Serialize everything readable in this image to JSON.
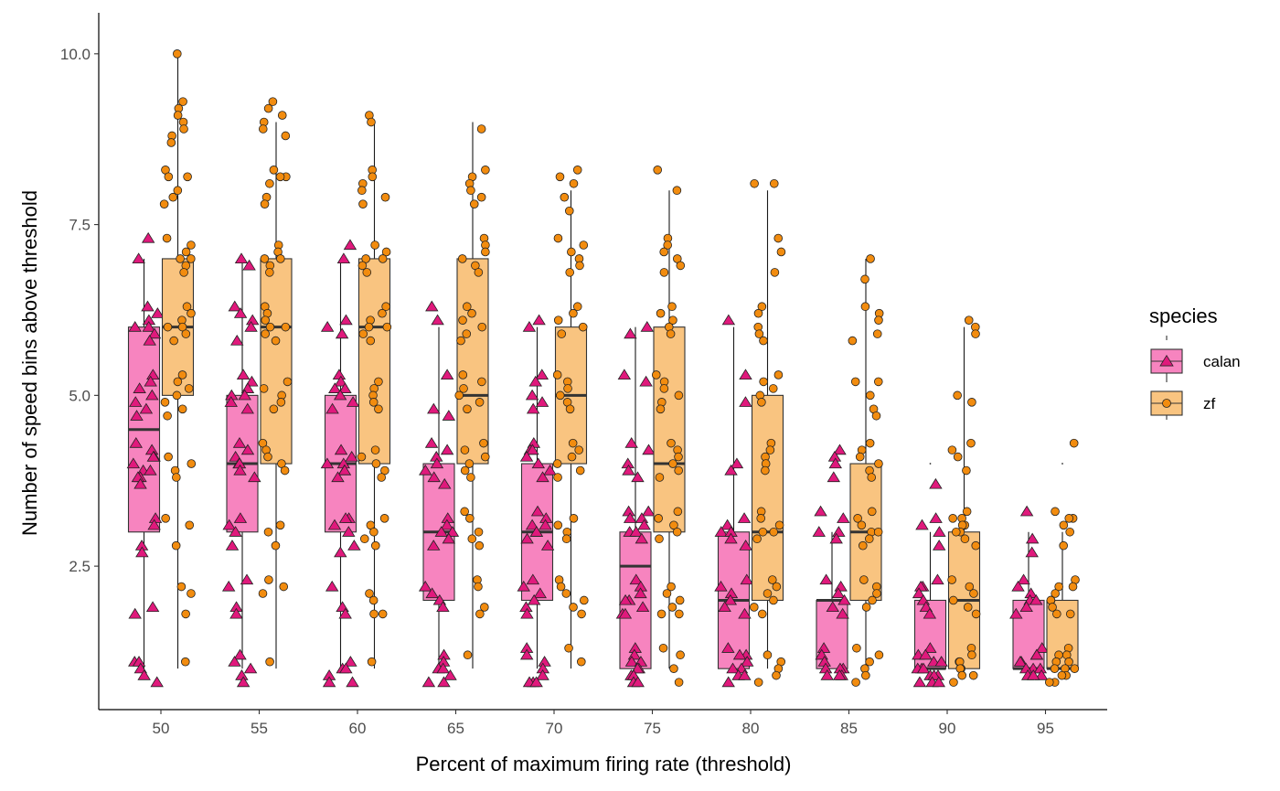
{
  "chart_data": {
    "type": "box",
    "xlabel": "Percent of maximum firing rate (threshold)",
    "ylabel": "Number of speed bins above threshold",
    "categories": [
      "50",
      "55",
      "60",
      "65",
      "70",
      "75",
      "80",
      "85",
      "90",
      "95"
    ],
    "yticks": [
      2.5,
      5.0,
      7.5,
      10.0
    ],
    "ytick_labels": [
      "2.5",
      "5.0",
      "7.5",
      "10.0"
    ],
    "ylim": [
      0.4,
      10.6
    ],
    "grid": false,
    "legend": {
      "title": "species",
      "position": "right"
    },
    "series": [
      {
        "name": "calan",
        "fill": "#f784bf",
        "point_color": "#e0197c",
        "marker": "triangle",
        "boxes": [
          {
            "q1": 3,
            "median": 4.5,
            "q3": 6,
            "lo": 1,
            "hi": 7
          },
          {
            "q1": 3,
            "median": 4,
            "q3": 5,
            "lo": 1,
            "hi": 7
          },
          {
            "q1": 3,
            "median": 4,
            "q3": 5,
            "lo": 1,
            "hi": 7
          },
          {
            "q1": 2,
            "median": 3,
            "q3": 4,
            "lo": 1,
            "hi": 6
          },
          {
            "q1": 2,
            "median": 3,
            "q3": 4,
            "lo": 1,
            "hi": 6
          },
          {
            "q1": 1,
            "median": 2.5,
            "q3": 3,
            "lo": 1,
            "hi": 6
          },
          {
            "q1": 1,
            "median": 2,
            "q3": 3,
            "lo": 1,
            "hi": 6
          },
          {
            "q1": 1,
            "median": 2,
            "q3": 2,
            "lo": 1,
            "hi": 3
          },
          {
            "q1": 1,
            "median": 1,
            "q3": 2,
            "lo": 1,
            "hi": 3
          },
          {
            "q1": 1,
            "median": 1,
            "q3": 2,
            "lo": 1,
            "hi": 3
          }
        ],
        "outliers": [
          [],
          [],
          [],
          [],
          [],
          [],
          [],
          [],
          [
            4
          ],
          []
        ],
        "points": [
          [
            7.3,
            7,
            6.3,
            6.2,
            6.1,
            6,
            6,
            5.9,
            5.8,
            5.3,
            5.2,
            5.1,
            5,
            4.9,
            4.8,
            4.7,
            4.3,
            4.2,
            4.1,
            4.1,
            4,
            3.9,
            3.9,
            3.8,
            3.8,
            3.7,
            3.2,
            3.1,
            2.8,
            2.7,
            1.9,
            1.8,
            1.1,
            1.1,
            1,
            0.9,
            0.8
          ],
          [
            7,
            6.9,
            6.3,
            6.2,
            6.1,
            6,
            5.8,
            5.3,
            5.2,
            5.1,
            5,
            5,
            4.9,
            4.8,
            4.3,
            4.2,
            4.1,
            4,
            4,
            3.9,
            3.8,
            3.2,
            3.1,
            3,
            2.8,
            2.3,
            2.2,
            1.9,
            1.8,
            1.2,
            1.1,
            1,
            0.9,
            0.8
          ],
          [
            7.2,
            7,
            6.1,
            6,
            5.9,
            5.3,
            5.2,
            5.1,
            5.1,
            5,
            4.9,
            4.8,
            4.2,
            4.1,
            4,
            4,
            3.9,
            3.9,
            3.8,
            3.2,
            3.2,
            3.1,
            3,
            2.8,
            2.7,
            2.2,
            1.9,
            1.8,
            1.1,
            1,
            1,
            0.9,
            0.8,
            0.8
          ],
          [
            6.3,
            6.1,
            5.3,
            4.8,
            4.7,
            4.3,
            4.2,
            4.1,
            4,
            3.9,
            3.8,
            3.7,
            3.2,
            3.1,
            3,
            3,
            2.9,
            2.8,
            2.2,
            2.1,
            2,
            1.9,
            1.2,
            1.1,
            1,
            1,
            0.9,
            0.8,
            0.8
          ],
          [
            6.1,
            6,
            5.3,
            5.2,
            5,
            4.9,
            4.8,
            4.3,
            4.2,
            4.2,
            4.1,
            4,
            3.9,
            3.8,
            3.3,
            3.2,
            3.1,
            3.1,
            3,
            3,
            2.9,
            2.8,
            2.3,
            2.2,
            2.1,
            2,
            1.9,
            1.8,
            1.3,
            1.2,
            1.1,
            1,
            0.9,
            0.8,
            0.8,
            0.8
          ],
          [
            6,
            5.9,
            5.3,
            5.2,
            4.3,
            4.2,
            4,
            3.9,
            3.8,
            3.3,
            3.3,
            3.2,
            3.2,
            3.1,
            3,
            3,
            2.9,
            2.3,
            2.2,
            2.1,
            2,
            2,
            1.9,
            1.8,
            1.8,
            1.3,
            1.2,
            1.1,
            1.1,
            1,
            1,
            0.9,
            0.9,
            0.8,
            0.8
          ],
          [
            6.1,
            5.3,
            4.9,
            4,
            3.9,
            3.2,
            3.1,
            3,
            3,
            2.9,
            2.8,
            2.3,
            2.2,
            2.1,
            2,
            1.9,
            1.8,
            1.3,
            1.2,
            1.2,
            1.1,
            1,
            1,
            0.9,
            0.9,
            0.8
          ],
          [
            4.2,
            4.1,
            4,
            3.8,
            3.3,
            3.2,
            3,
            3,
            2.9,
            2.3,
            2.2,
            2.1,
            2,
            1.9,
            1.8,
            1.3,
            1.2,
            1.1,
            1,
            1,
            1,
            0.9,
            0.9,
            0.9
          ],
          [
            3.7,
            3.2,
            3.1,
            3,
            2.8,
            2.3,
            2.2,
            2.2,
            2.1,
            2,
            1.9,
            1.8,
            1.3,
            1.2,
            1.2,
            1.1,
            1.1,
            1,
            1,
            1,
            0.9,
            0.9,
            0.9,
            0.8,
            0.8,
            0.8
          ],
          [
            3.3,
            2.9,
            2.7,
            2.3,
            2.2,
            2.1,
            2,
            2,
            1.9,
            1.8,
            1.3,
            1.2,
            1.2,
            1.1,
            1.1,
            1,
            1,
            1,
            0.9,
            0.9,
            0.9
          ]
        ]
      },
      {
        "name": "zf",
        "fill": "#f9c480",
        "point_color": "#f28c0f",
        "marker": "circle",
        "boxes": [
          {
            "q1": 5,
            "median": 6,
            "q3": 7,
            "lo": 1,
            "hi": 10
          },
          {
            "q1": 4,
            "median": 6,
            "q3": 7,
            "lo": 1,
            "hi": 9
          },
          {
            "q1": 4,
            "median": 6,
            "q3": 7,
            "lo": 1,
            "hi": 9
          },
          {
            "q1": 4,
            "median": 5,
            "q3": 7,
            "lo": 1,
            "hi": 9
          },
          {
            "q1": 4,
            "median": 5,
            "q3": 6,
            "lo": 1,
            "hi": 8
          },
          {
            "q1": 3,
            "median": 4,
            "q3": 6,
            "lo": 1,
            "hi": 8
          },
          {
            "q1": 2,
            "median": 3,
            "q3": 5,
            "lo": 1,
            "hi": 8
          },
          {
            "q1": 2,
            "median": 3,
            "q3": 4,
            "lo": 1,
            "hi": 7
          },
          {
            "q1": 1,
            "median": 2,
            "q3": 3,
            "lo": 1,
            "hi": 6
          },
          {
            "q1": 1,
            "median": 1,
            "q3": 2,
            "lo": 1,
            "hi": 3
          }
        ],
        "outliers": [
          [],
          [],
          [],
          [],
          [],
          [],
          [],
          [],
          [],
          [
            4
          ]
        ],
        "points": [
          [
            10,
            9.3,
            9.2,
            9.1,
            9,
            8.9,
            8.8,
            8.7,
            8.3,
            8.2,
            8.2,
            8,
            7.9,
            7.8,
            7.3,
            7.2,
            7.1,
            7,
            7,
            6.9,
            6.8,
            6.3,
            6.2,
            6.1,
            6,
            6,
            5.9,
            5.8,
            5.3,
            5.2,
            5.1,
            5,
            4.9,
            4.8,
            4.7,
            4.1,
            4,
            3.9,
            3.8,
            3.2,
            3.1,
            2.8,
            2.2,
            2.1,
            1.8,
            1.1
          ],
          [
            9.3,
            9.2,
            9.1,
            9,
            8.9,
            8.8,
            8.3,
            8.2,
            8.2,
            8.1,
            7.9,
            7.8,
            7.2,
            7.1,
            7,
            7,
            6.9,
            6.8,
            6.3,
            6.2,
            6.1,
            6,
            6,
            5.9,
            5.8,
            5.2,
            5.1,
            5,
            4.9,
            4.8,
            4.3,
            4.2,
            4.1,
            4,
            3.9,
            3.1,
            3,
            2.8,
            2.3,
            2.2,
            2.1,
            1.1
          ],
          [
            9.1,
            9,
            8.3,
            8.2,
            8.1,
            8,
            7.9,
            7.8,
            7.2,
            7.1,
            7,
            7,
            6.9,
            6.8,
            6.3,
            6.2,
            6.1,
            6,
            6,
            5.9,
            5.8,
            5.2,
            5.1,
            5,
            4.9,
            4.8,
            4.2,
            4.1,
            4,
            3.9,
            3.8,
            3.2,
            3.1,
            3,
            2.9,
            2.8,
            2.1,
            2,
            1.8,
            1.8,
            1.1
          ],
          [
            8.9,
            8.3,
            8.2,
            8.1,
            8,
            7.9,
            7.8,
            7.3,
            7.2,
            7.1,
            7,
            6.9,
            6.8,
            6.3,
            6.2,
            6.1,
            6,
            5.9,
            5.8,
            5.3,
            5.2,
            5.1,
            5,
            4.9,
            4.8,
            4.3,
            4.2,
            4.1,
            4,
            3.9,
            3.8,
            3.3,
            3.2,
            3,
            2.9,
            2.8,
            2.3,
            2.2,
            1.9,
            1.8,
            1.2
          ],
          [
            8.3,
            8.2,
            8.1,
            7.9,
            7.7,
            7.3,
            7.2,
            7.1,
            7,
            6.9,
            6.8,
            6.3,
            6.2,
            6.1,
            6,
            5.9,
            5.3,
            5.2,
            5.1,
            5,
            4.9,
            4.8,
            4.3,
            4.2,
            4.1,
            4,
            3.9,
            3.8,
            3.2,
            3.1,
            3,
            2.9,
            2.3,
            2.2,
            2.1,
            2,
            1.9,
            1.8,
            1.3,
            1.1
          ],
          [
            8.3,
            8,
            7.3,
            7.2,
            7.1,
            7,
            6.9,
            6.8,
            6.3,
            6.2,
            6.1,
            6,
            5.9,
            5.3,
            5.2,
            5.1,
            5,
            4.9,
            4.8,
            4.3,
            4.2,
            4.1,
            4,
            3.9,
            3.8,
            3.3,
            3.2,
            3.1,
            3,
            2.9,
            2.2,
            2.1,
            2,
            1.9,
            1.8,
            1.8,
            1.3,
            1.2,
            1,
            0.8
          ],
          [
            8.1,
            8.1,
            7.3,
            7.1,
            6.8,
            6.3,
            6.2,
            6,
            5.9,
            5.8,
            5.3,
            5.2,
            5.1,
            5,
            4.9,
            4.3,
            4.2,
            4.1,
            4,
            3.9,
            3.3,
            3.2,
            3.1,
            3,
            3,
            2.9,
            2.3,
            2.2,
            2.1,
            2,
            1.9,
            1.8,
            1.2,
            1.1,
            1,
            0.9,
            0.8
          ],
          [
            7,
            6.7,
            6.3,
            6.2,
            6.1,
            5.9,
            5.8,
            5.2,
            5.2,
            5,
            4.8,
            4.7,
            4.3,
            4.2,
            4.1,
            4,
            3.9,
            3.8,
            3.3,
            3.2,
            3.1,
            3,
            3,
            2.9,
            2.8,
            2.3,
            2.2,
            2.1,
            2,
            1.9,
            1.3,
            1.2,
            1.1,
            1,
            0.9,
            0.8
          ],
          [
            6.1,
            6,
            5.9,
            5,
            4.9,
            4.3,
            4.2,
            4.1,
            3.9,
            3.3,
            3.2,
            3.2,
            3.1,
            3.1,
            3,
            3,
            2.9,
            2.8,
            2.3,
            2.2,
            2.1,
            2,
            1.9,
            1.8,
            1.3,
            1.2,
            1.1,
            1.1,
            1,
            1,
            0.9,
            0.9,
            0.8
          ],
          [
            4.3,
            3.3,
            3.2,
            3.2,
            3.1,
            3,
            2.8,
            2.3,
            2.2,
            2.2,
            2.1,
            2,
            2,
            1.9,
            1.8,
            1.8,
            1.3,
            1.2,
            1.2,
            1.1,
            1.1,
            1,
            1,
            1,
            0.9,
            0.9,
            0.8,
            0.8
          ]
        ]
      }
    ]
  }
}
